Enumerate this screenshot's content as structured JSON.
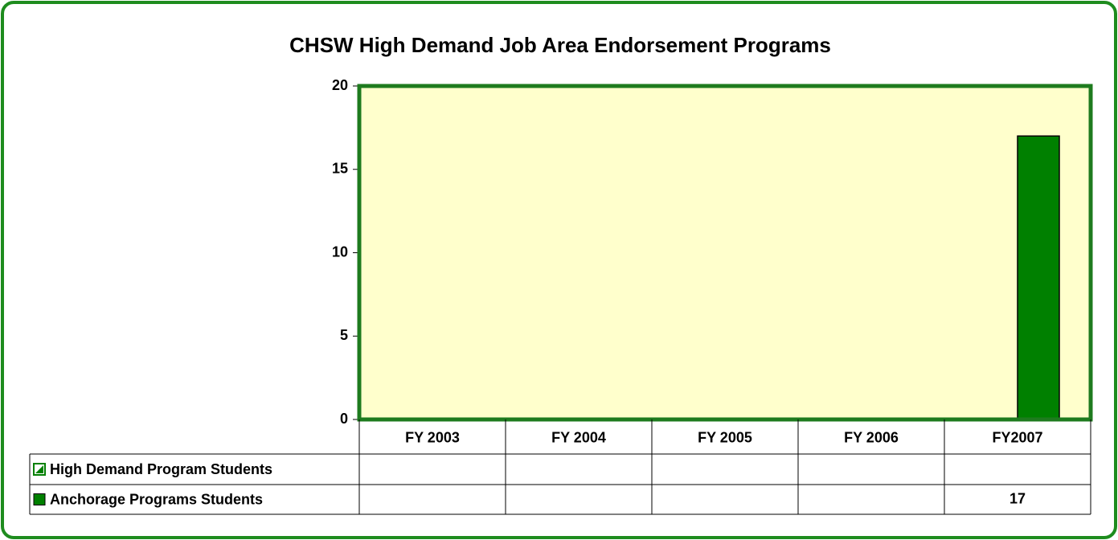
{
  "chart_data": {
    "type": "bar",
    "title": "CHSW High Demand Job Area Endorsement Programs",
    "categories": [
      "FY 2003",
      "FY 2004",
      "FY 2005",
      "FY 2006",
      "FY2007"
    ],
    "series": [
      {
        "name": "High Demand Program Students",
        "color": "#008000",
        "values": [
          null,
          null,
          null,
          null,
          null
        ]
      },
      {
        "name": "Anchorage Programs Students",
        "color": "#008000",
        "values": [
          null,
          null,
          null,
          null,
          17
        ]
      }
    ],
    "ylim": [
      0,
      20
    ],
    "yticks": [
      0,
      5,
      10,
      15,
      20
    ],
    "plot_background": "#ffffcc",
    "plot_border": "#1e7b1e"
  }
}
